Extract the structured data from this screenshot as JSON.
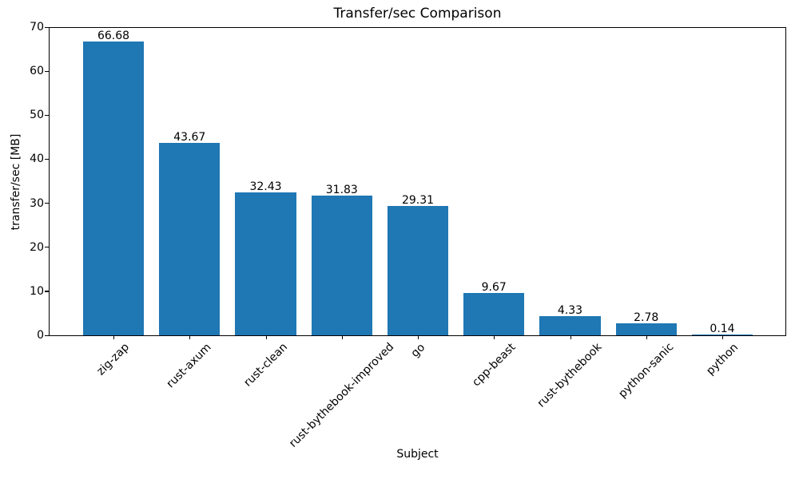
{
  "chart_data": {
    "type": "bar",
    "title": "Transfer/sec Comparison",
    "xlabel": "Subject",
    "ylabel": "transfer/sec [MB]",
    "categories": [
      "zig-zap",
      "rust-axum",
      "rust-clean",
      "rust-bythebook-improved",
      "go",
      "cpp-beast",
      "rust-bythebook",
      "python-sanic",
      "python"
    ],
    "values": [
      66.68,
      43.67,
      32.43,
      31.83,
      29.31,
      9.67,
      4.33,
      2.78,
      0.14
    ],
    "value_labels": [
      "66.68",
      "43.67",
      "32.43",
      "31.83",
      "29.31",
      "9.67",
      "4.33",
      "2.78",
      "0.14"
    ],
    "ylim": [
      0,
      70
    ],
    "yticks": [
      0,
      10,
      20,
      30,
      40,
      50,
      60,
      70
    ],
    "bar_color": "#1f77b4",
    "grid": false,
    "legend_position": "none"
  }
}
